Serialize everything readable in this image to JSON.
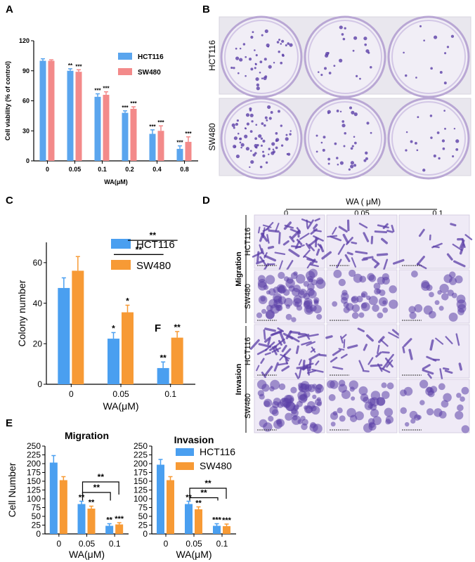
{
  "panels": {
    "A": "A",
    "B": "B",
    "C": "C",
    "D": "D",
    "E": "E"
  },
  "chart_data": [
    {
      "panel": "A",
      "type": "bar",
      "categories": [
        "0",
        "0.05",
        "0.1",
        "0.2",
        "0.4",
        "0.8"
      ],
      "series": [
        {
          "name": "HCT116",
          "values": [
            100,
            90,
            64,
            48,
            27,
            12
          ],
          "errors": [
            2,
            2,
            3,
            2,
            4,
            3
          ]
        },
        {
          "name": "SW480",
          "values": [
            100,
            89,
            66,
            52,
            30,
            19
          ],
          "errors": [
            1,
            2,
            3,
            2,
            5,
            5
          ]
        }
      ],
      "significance": [
        [
          "",
          ""
        ],
        [
          "**",
          "***"
        ],
        [
          "***",
          "***"
        ],
        [
          "***",
          "***"
        ],
        [
          "***",
          "***"
        ],
        [
          "***",
          "***"
        ]
      ],
      "ylabel": "Cell viability (% of control)",
      "xlabel": "WA(μM)",
      "yticks": [
        "0",
        "30",
        "60",
        "90",
        "120"
      ],
      "ylim": [
        0,
        120
      ],
      "legend": "top-right"
    },
    {
      "panel": "C",
      "type": "bar",
      "categories": [
        "0",
        "0.05",
        "0.1"
      ],
      "series": [
        {
          "name": "HCT116",
          "values": [
            47.5,
            22.5,
            8
          ],
          "errors": [
            5,
            3,
            3
          ]
        },
        {
          "name": "SW480",
          "values": [
            56,
            35.5,
            23
          ],
          "errors": [
            7,
            3.5,
            3
          ]
        }
      ],
      "significance": [
        [
          "",
          ""
        ],
        [
          "*",
          "*"
        ],
        [
          "**",
          "**"
        ]
      ],
      "brackets": [
        {
          "label": "**"
        },
        {
          "label": "**"
        }
      ],
      "annotation": "F",
      "ylabel": "Colony number",
      "xlabel": "WA(μM)",
      "yticks": [
        "0",
        "20",
        "40",
        "60"
      ],
      "ylim": [
        0,
        70
      ],
      "legend": "top-right"
    },
    {
      "panel": "E-left",
      "type": "bar",
      "title": "Migration",
      "categories": [
        "0",
        "0.05",
        "0.1"
      ],
      "series": [
        {
          "name": "HCT116",
          "values": [
            203,
            85,
            23
          ],
          "errors": [
            20,
            8,
            6
          ]
        },
        {
          "name": "SW480",
          "values": [
            153,
            72,
            27
          ],
          "errors": [
            10,
            7,
            5
          ]
        }
      ],
      "significance": [
        [
          "",
          ""
        ],
        [
          "**",
          "**"
        ],
        [
          "**",
          "***"
        ]
      ],
      "brackets": [
        {
          "label": "**"
        },
        {
          "label": "**"
        }
      ],
      "ylabel": "Cell Number",
      "xlabel": "WA(μM)",
      "yticks": [
        "0",
        "25",
        "50",
        "75",
        "100",
        "125",
        "150",
        "175",
        "200",
        "225",
        "250"
      ],
      "ylim": [
        0,
        250
      ]
    },
    {
      "panel": "E-right",
      "type": "bar",
      "title": "Invasion",
      "categories": [
        "0",
        "0.05",
        "0.1"
      ],
      "series": [
        {
          "name": "HCT116",
          "values": [
            197,
            85,
            23
          ],
          "errors": [
            15,
            8,
            6
          ]
        },
        {
          "name": "SW480",
          "values": [
            153,
            70,
            22
          ],
          "errors": [
            10,
            7,
            6
          ]
        }
      ],
      "significance": [
        [
          "",
          ""
        ],
        [
          "**",
          "**"
        ],
        [
          "***",
          "***"
        ]
      ],
      "brackets": [
        {
          "label": "**"
        },
        {
          "label": "**"
        }
      ],
      "xlabel": "WA(μM)",
      "yticks": [
        "0",
        "25",
        "50",
        "75",
        "100",
        "125",
        "150",
        "175",
        "200",
        "225",
        "250"
      ],
      "ylim": [
        0,
        250
      ],
      "legend": "top-right"
    }
  ],
  "panelB": {
    "rows": [
      "HCT116",
      "SW480"
    ]
  },
  "panelD": {
    "header": "WA ( μM)",
    "columns": [
      "0",
      "0.05",
      "0.1"
    ],
    "groups": [
      "Migration",
      "Invasion"
    ],
    "rows": [
      "HCT116",
      "SW480",
      "HCT116",
      "SW480"
    ]
  },
  "colors": {
    "A_hct": "#5aa5ee",
    "A_sw": "#f38a8a",
    "C_hct": "#4a9ff0",
    "C_sw": "#f79a35",
    "stain": "#5b3fa8"
  }
}
